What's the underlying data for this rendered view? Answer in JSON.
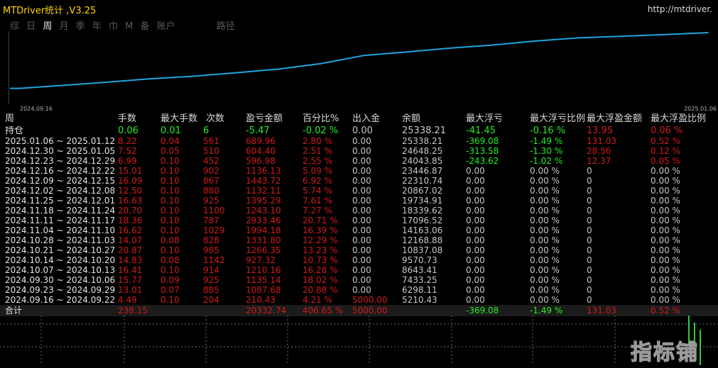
{
  "window": {
    "title": "MTDriver统计 ,V3.25",
    "url": "http://mtdriver."
  },
  "tabs": [
    {
      "label": "综",
      "active": false
    },
    {
      "label": "日",
      "active": false
    },
    {
      "label": "周",
      "active": true
    },
    {
      "label": "月",
      "active": false
    },
    {
      "label": "季",
      "active": false
    },
    {
      "label": "年",
      "active": false
    },
    {
      "label": "巾",
      "active": false
    },
    {
      "label": "M",
      "active": false
    },
    {
      "label": "备",
      "active": false
    },
    {
      "label": "账户",
      "active": false
    },
    {
      "label": "路径",
      "active": false
    }
  ],
  "chart_data": {
    "type": "line",
    "title": "",
    "x_tick_labels": [
      "2024.09.16",
      "2025.01.06"
    ],
    "series_color": "#1fa3e0",
    "x": [
      "2024.09.16",
      "2024.09.23",
      "2024.09.30",
      "2024.10.07",
      "2024.10.14",
      "2024.10.21",
      "2024.10.28",
      "2024.11.04",
      "2024.11.11",
      "2024.11.18",
      "2024.11.25",
      "2024.12.02",
      "2024.12.09",
      "2024.12.16",
      "2024.12.23",
      "2024.12.30",
      "2025.01.06"
    ],
    "values": [
      5210.43,
      6298.11,
      7433.25,
      8643.41,
      9570.73,
      10837.08,
      12168.88,
      14163.06,
      17096.52,
      18339.62,
      19734.91,
      20867.02,
      22310.74,
      23446.87,
      24043.85,
      24648.25,
      25338.21
    ]
  },
  "headers": {
    "period": "周",
    "lots": "手数",
    "max_lots": "最大手数",
    "count": "次数",
    "pnl": "盈亏金额",
    "pct": "百分比%",
    "flow": "出入金",
    "balance": "余额",
    "max_float_loss": "最大浮亏",
    "max_float_loss_pct": "最大浮亏比例",
    "max_float_profit": "最大浮盈金额",
    "max_float_profit_pct": "最大浮盈比例"
  },
  "open_row": {
    "label": "持仓",
    "lots": "0.06",
    "max_lots": "0.01",
    "count": "6",
    "pnl": "-5.47",
    "pct": "-0.02 %",
    "flow": "0.00",
    "balance": "25338.21",
    "mfl": "-41.45",
    "mflp": "-0.16 %",
    "mfp": "13.95",
    "mfpp": "0.06 %"
  },
  "rows": [
    {
      "period": "2025.01.06 ~ 2025.01.12",
      "lots": "8.22",
      "max_lots": "0.04",
      "count": "561",
      "pnl": "689.96",
      "pct": "2.80 %",
      "flow": "0.00",
      "balance": "25338.21",
      "mfl": "-369.08",
      "mflp": "-1.49 %",
      "mfp": "131.03",
      "mfpp": "0.52 %"
    },
    {
      "period": "2024.12.30 ~ 2025.01.05",
      "lots": "7.52",
      "max_lots": "0.05",
      "count": "510",
      "pnl": "604.40",
      "pct": "2.51 %",
      "flow": "0.00",
      "balance": "24648.25",
      "mfl": "-313.58",
      "mflp": "-1.30 %",
      "mfp": "28.56",
      "mfpp": "0.12 %"
    },
    {
      "period": "2024.12.23 ~ 2024.12.29",
      "lots": "6.99",
      "max_lots": "0.10",
      "count": "452",
      "pnl": "596.98",
      "pct": "2.55 %",
      "flow": "0.00",
      "balance": "24043.85",
      "mfl": "-243.62",
      "mflp": "-1.02 %",
      "mfp": "12.37",
      "mfpp": "0.05 %"
    },
    {
      "period": "2024.12.16 ~ 2024.12.22",
      "lots": "15.01",
      "max_lots": "0.10",
      "count": "902",
      "pnl": "1136.13",
      "pct": "5.09 %",
      "flow": "0.00",
      "balance": "23446.87",
      "mfl": "0.00",
      "mflp": "0.00 %",
      "mfp": "0",
      "mfpp": "0.00 %"
    },
    {
      "period": "2024.12.09 ~ 2024.12.15",
      "lots": "16.09",
      "max_lots": "0.10",
      "count": "867",
      "pnl": "1443.72",
      "pct": "6.92 %",
      "flow": "0.00",
      "balance": "22310.74",
      "mfl": "0.00",
      "mflp": "0.00 %",
      "mfp": "0",
      "mfpp": "0.00 %"
    },
    {
      "period": "2024.12.02 ~ 2024.12.08",
      "lots": "12.50",
      "max_lots": "0.10",
      "count": "880",
      "pnl": "1132.11",
      "pct": "5.74 %",
      "flow": "0.00",
      "balance": "20867.02",
      "mfl": "0.00",
      "mflp": "0.00 %",
      "mfp": "0",
      "mfpp": "0.00 %"
    },
    {
      "period": "2024.11.25 ~ 2024.12.01",
      "lots": "16.63",
      "max_lots": "0.10",
      "count": "925",
      "pnl": "1395.29",
      "pct": "7.61 %",
      "flow": "0.00",
      "balance": "19734.91",
      "mfl": "0.00",
      "mflp": "0.00 %",
      "mfp": "0",
      "mfpp": "0.00 %"
    },
    {
      "period": "2024.11.18 ~ 2024.11.24",
      "lots": "20.70",
      "max_lots": "0.10",
      "count": "1100",
      "pnl": "1243.10",
      "pct": "7.27 %",
      "flow": "0.00",
      "balance": "18339.62",
      "mfl": "0.00",
      "mflp": "0.00 %",
      "mfp": "0",
      "mfpp": "0.00 %"
    },
    {
      "period": "2024.11.11 ~ 2024.11.17",
      "lots": "18.36",
      "max_lots": "0.10",
      "count": "787",
      "pnl": "2933.46",
      "pct": "20.71 %",
      "flow": "0.00",
      "balance": "17096.52",
      "mfl": "0.00",
      "mflp": "0.00 %",
      "mfp": "0",
      "mfpp": "0.00 %"
    },
    {
      "period": "2024.11.04 ~ 2024.11.10",
      "lots": "16.62",
      "max_lots": "0.10",
      "count": "1029",
      "pnl": "1994.18",
      "pct": "16.39 %",
      "flow": "0.00",
      "balance": "14163.06",
      "mfl": "0.00",
      "mflp": "0.00 %",
      "mfp": "0",
      "mfpp": "0.00 %"
    },
    {
      "period": "2024.10.28 ~ 2024.11.03",
      "lots": "14.07",
      "max_lots": "0.08",
      "count": "828",
      "pnl": "1331.80",
      "pct": "12.29 %",
      "flow": "0.00",
      "balance": "12168.88",
      "mfl": "0.00",
      "mflp": "0.00 %",
      "mfp": "0",
      "mfpp": "0.00 %"
    },
    {
      "period": "2024.10.21 ~ 2024.10.27",
      "lots": "20.87",
      "max_lots": "0.10",
      "count": "985",
      "pnl": "1266.35",
      "pct": "13.23 %",
      "flow": "0.00",
      "balance": "10837.08",
      "mfl": "0.00",
      "mflp": "0.00 %",
      "mfp": "0",
      "mfpp": "0.00 %"
    },
    {
      "period": "2024.10.14 ~ 2024.10.20",
      "lots": "14.83",
      "max_lots": "0.08",
      "count": "1142",
      "pnl": "927.32",
      "pct": "10.73 %",
      "flow": "0.00",
      "balance": "9570.73",
      "mfl": "0.00",
      "mflp": "0.00 %",
      "mfp": "0",
      "mfpp": "0.00 %"
    },
    {
      "period": "2024.10.07 ~ 2024.10.13",
      "lots": "16.41",
      "max_lots": "0.10",
      "count": "914",
      "pnl": "1210.16",
      "pct": "16.28 %",
      "flow": "0.00",
      "balance": "8643.41",
      "mfl": "0.00",
      "mflp": "0.00 %",
      "mfp": "0",
      "mfpp": "0.00 %"
    },
    {
      "period": "2024.09.30 ~ 2024.10.06",
      "lots": "15.77",
      "max_lots": "0.09",
      "count": "925",
      "pnl": "1135.14",
      "pct": "18.02 %",
      "flow": "0.00",
      "balance": "7433.25",
      "mfl": "0.00",
      "mflp": "0.00 %",
      "mfp": "0",
      "mfpp": "0.00 %"
    },
    {
      "period": "2024.09.23 ~ 2024.09.29",
      "lots": "13.01",
      "max_lots": "0.07",
      "count": "885",
      "pnl": "1087.68",
      "pct": "20.88 %",
      "flow": "0.00",
      "balance": "6298.11",
      "mfl": "0.00",
      "mflp": "0.00 %",
      "mfp": "0",
      "mfpp": "0.00 %"
    },
    {
      "period": "2024.09.16 ~ 2024.09.22",
      "lots": "4.49",
      "max_lots": "0.10",
      "count": "204",
      "pnl": "210.43",
      "pct": "4.21 %",
      "flow": "5000.00",
      "balance": "5210.43",
      "mfl": "0.00",
      "mflp": "0.00 %",
      "mfp": "0",
      "mfpp": "0.00 %"
    }
  ],
  "total_row": {
    "label": "合计",
    "lots": "238.15",
    "max_lots": "",
    "count": "",
    "pnl": "20332.74",
    "pct": "406.65 %",
    "flow": "5000.00",
    "balance": "",
    "mfl": "-369.08",
    "mflp": "-1.49 %",
    "mfp": "131.03",
    "mfpp": "0.52 %"
  },
  "watermark": "指标铺",
  "colors": {
    "profit": "#d11a1a",
    "negative": "#22ee22",
    "accent": "#1fa3e0",
    "title": "#ffd700"
  }
}
